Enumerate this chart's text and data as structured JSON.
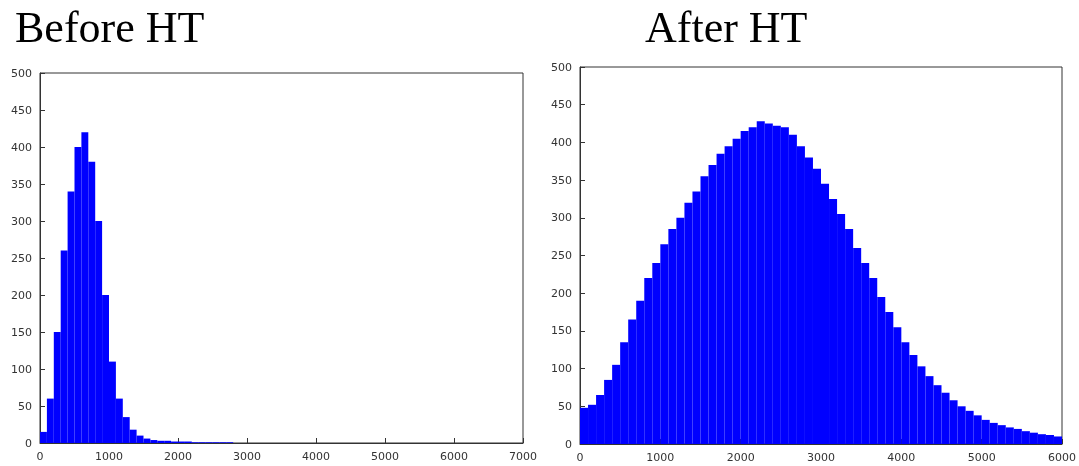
{
  "chart_data": [
    {
      "type": "histogram",
      "title": "Before HT",
      "color": "#0000ff",
      "bins": [
        0,
        100,
        200,
        300,
        400,
        500,
        600,
        700,
        800,
        900,
        1000,
        1100,
        1200,
        1300,
        1400,
        1500,
        1600,
        1700,
        1800,
        1900,
        2000,
        2100,
        2200,
        2300,
        2400,
        2500,
        2600,
        2700,
        2800
      ],
      "values": [
        15,
        60,
        150,
        260,
        340,
        400,
        420,
        380,
        300,
        200,
        110,
        60,
        35,
        18,
        10,
        6,
        4,
        3,
        3,
        2,
        2,
        2,
        1,
        1,
        1,
        1,
        1,
        1
      ],
      "xlim": [
        0,
        7000
      ],
      "xticks": [
        0,
        1000,
        2000,
        3000,
        4000,
        5000,
        6000,
        7000
      ],
      "ylim": [
        0,
        500
      ],
      "yticks": [
        0,
        50,
        100,
        150,
        200,
        250,
        300,
        350,
        400,
        450,
        500
      ],
      "grid": false
    },
    {
      "type": "histogram",
      "title": "After HT",
      "color": "#0000ff",
      "bins": [
        0,
        100,
        200,
        300,
        400,
        500,
        600,
        700,
        800,
        900,
        1000,
        1100,
        1200,
        1300,
        1400,
        1500,
        1600,
        1700,
        1800,
        1900,
        2000,
        2100,
        2200,
        2300,
        2400,
        2500,
        2600,
        2700,
        2800,
        2900,
        3000,
        3100,
        3200,
        3300,
        3400,
        3500,
        3600,
        3700,
        3800,
        3900,
        4000,
        4100,
        4200,
        4300,
        4400,
        4500,
        4600,
        4700,
        4800,
        4900,
        5000,
        5100,
        5200,
        5300,
        5400,
        5500,
        5600,
        5700,
        5800,
        5900,
        6000
      ],
      "values": [
        48,
        52,
        65,
        85,
        105,
        135,
        165,
        190,
        220,
        240,
        265,
        285,
        300,
        320,
        335,
        355,
        370,
        385,
        395,
        405,
        415,
        420,
        428,
        425,
        422,
        420,
        410,
        395,
        380,
        365,
        345,
        325,
        305,
        285,
        260,
        240,
        220,
        195,
        175,
        155,
        135,
        118,
        103,
        90,
        78,
        68,
        58,
        50,
        44,
        38,
        32,
        28,
        25,
        22,
        20,
        17,
        15,
        13,
        12,
        10
      ],
      "xlim": [
        0,
        6000
      ],
      "xticks": [
        0,
        1000,
        2000,
        3000,
        4000,
        5000,
        6000
      ],
      "ylim": [
        0,
        500
      ],
      "yticks": [
        0,
        50,
        100,
        150,
        200,
        250,
        300,
        350,
        400,
        450,
        500
      ],
      "grid": false
    }
  ]
}
